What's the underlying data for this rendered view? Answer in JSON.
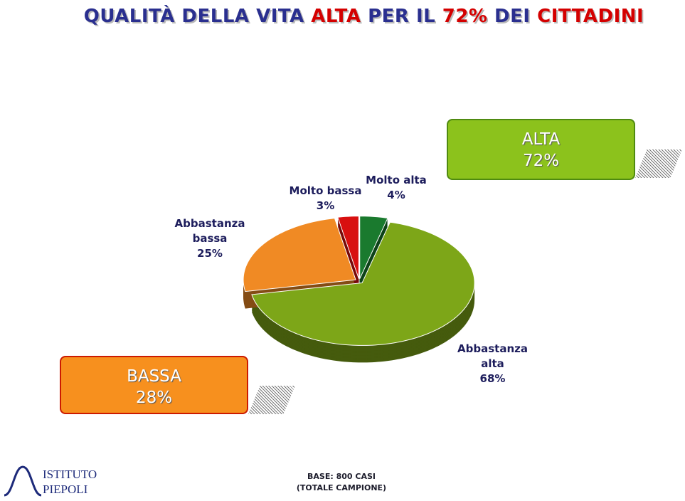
{
  "chart_data": {
    "type": "pie",
    "title": [
      {
        "text": "QUALITÀ DELLA VITA ",
        "color": "#2a2f8f"
      },
      {
        "text": "ALTA",
        "color": "#d40000"
      },
      {
        "text": " PER IL ",
        "color": "#2a2f8f"
      },
      {
        "text": "72%",
        "color": "#d40000"
      },
      {
        "text": " DEI ",
        "color": "#2a2f8f"
      },
      {
        "text": "CITTADINI",
        "color": "#d40000"
      }
    ],
    "categories": [
      "Molto alta",
      "Abbastanza alta",
      "Abbastanza bassa",
      "Molto bassa"
    ],
    "values": [
      4,
      68,
      25,
      3
    ],
    "value_labels": [
      "4%",
      "68%",
      "25%",
      "3%"
    ],
    "colors": [
      "#1a7a2e",
      "#7da618",
      "#f08a24",
      "#d81010"
    ],
    "groups": {
      "labels": [
        "ALTA",
        "BASSA"
      ],
      "values": [
        72,
        28
      ],
      "value_labels": [
        "72%",
        "28%"
      ],
      "colors": [
        "#8cc21c",
        "#f7901e"
      ],
      "borders": [
        "#4f8a10",
        "#cc1a00"
      ]
    },
    "footnote": [
      "BASE: 800 CASI",
      "(TOTALE CAMPIONE)"
    ]
  },
  "logo": [
    "ISTITUTO",
    "PIEPOLI"
  ]
}
